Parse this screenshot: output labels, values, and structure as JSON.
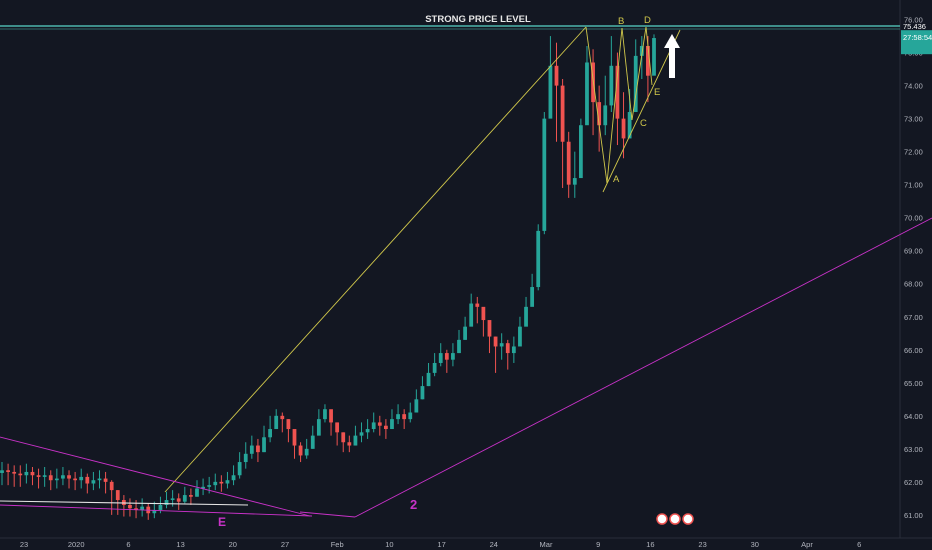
{
  "chart_data": {
    "type": "candlestick",
    "title": "",
    "xlabel": "",
    "ylabel": "",
    "ylim": [
      60.3,
      76.35
    ],
    "x_tick_labels": [
      "23",
      "2020",
      "6",
      "13",
      "20",
      "27",
      "Feb",
      "10",
      "17",
      "24",
      "Mar",
      "9",
      "16",
      "23",
      "30",
      "Apr",
      "6"
    ],
    "y_tick_labels": [
      "61.00",
      "62.00",
      "63.00",
      "64.00",
      "65.00",
      "66.00",
      "67.00",
      "68.00",
      "69.00",
      "70.00",
      "71.00",
      "72.00",
      "73.00",
      "74.00",
      "75.00",
      "76.00"
    ],
    "price_badge": {
      "value": "75.436",
      "countdown": "27:58:54",
      "level": 75.436
    },
    "grid": false,
    "colors": {
      "up": "#26a69a",
      "down": "#ef5350",
      "background": "#131722",
      "level_line": "#4db6ac",
      "channel": "#d1c84b",
      "trend": "#c832c8"
    },
    "series": [
      {
        "name": "",
        "values": [
          62.35,
          62.3,
          62.25,
          62.2,
          62.3,
          62.2,
          62.15,
          62.2,
          62.05,
          62.1,
          62.2,
          62.1,
          62.05,
          62.15,
          61.95,
          62.05,
          62.1,
          62.0,
          61.75,
          61.45,
          61.3,
          61.2,
          61.15,
          61.25,
          61.05,
          61.15,
          61.3,
          61.45,
          61.5,
          61.4,
          61.6,
          61.55,
          61.8,
          61.85,
          61.9,
          62.0,
          61.95,
          62.05,
          62.2,
          62.6,
          62.85,
          63.1,
          62.9,
          63.35,
          63.6,
          64.0,
          63.9,
          63.6,
          63.1,
          62.8,
          63.0,
          63.4,
          63.9,
          64.2,
          63.8,
          63.5,
          63.2,
          63.1,
          63.4,
          63.5,
          63.6,
          63.8,
          63.7,
          63.6,
          63.9,
          64.05,
          63.9,
          64.1,
          64.5,
          64.9,
          65.3,
          65.6,
          65.9,
          65.7,
          65.9,
          66.3,
          66.7,
          67.4,
          67.3,
          66.9,
          66.4,
          66.1,
          66.2,
          65.9,
          66.1,
          66.7,
          67.3,
          67.9,
          69.6,
          73.0,
          74.6,
          74.0,
          72.3,
          71.0,
          71.2,
          72.8,
          74.7,
          73.5,
          72.8,
          73.4,
          74.6,
          73.0,
          72.4,
          73.2,
          74.9,
          75.2,
          74.3,
          75.44
        ],
        "lows": [
          61.9,
          61.9,
          61.85,
          61.85,
          61.95,
          61.9,
          61.8,
          61.85,
          61.75,
          61.8,
          61.9,
          61.8,
          61.75,
          61.8,
          61.65,
          61.75,
          61.8,
          61.65,
          61.0,
          61.0,
          60.95,
          60.95,
          60.9,
          60.95,
          60.85,
          60.9,
          61.05,
          61.2,
          61.25,
          61.15,
          61.35,
          61.3,
          61.55,
          61.6,
          61.65,
          61.75,
          61.7,
          61.8,
          61.9,
          62.1,
          62.4,
          62.7,
          62.6,
          62.9,
          63.2,
          63.6,
          63.5,
          63.2,
          62.7,
          62.6,
          62.7,
          63.0,
          63.5,
          63.8,
          63.4,
          63.1,
          62.9,
          62.9,
          63.1,
          63.2,
          63.3,
          63.5,
          63.4,
          63.3,
          63.6,
          63.75,
          63.6,
          63.8,
          64.1,
          64.5,
          64.9,
          65.2,
          65.5,
          65.3,
          65.5,
          65.9,
          66.3,
          66.9,
          66.8,
          66.4,
          65.9,
          65.3,
          65.7,
          65.4,
          65.6,
          66.2,
          66.8,
          67.4,
          67.8,
          69.5,
          73.2,
          72.3,
          70.9,
          70.6,
          70.6,
          71.5,
          73.0,
          72.5,
          72.0,
          72.5,
          73.2,
          72.2,
          71.8,
          72.4,
          73.8,
          74.2,
          73.5,
          74.6
        ],
        "highs": [
          62.6,
          62.55,
          62.5,
          62.5,
          62.55,
          62.45,
          62.4,
          62.45,
          62.35,
          62.4,
          62.45,
          62.35,
          62.3,
          62.4,
          62.25,
          62.3,
          62.35,
          62.3,
          62.05,
          61.75,
          61.6,
          61.5,
          61.45,
          61.5,
          61.35,
          61.4,
          61.55,
          61.7,
          61.75,
          61.65,
          61.85,
          61.8,
          62.05,
          62.1,
          62.15,
          62.25,
          62.2,
          62.3,
          62.5,
          62.9,
          63.2,
          63.4,
          63.3,
          63.7,
          64.0,
          64.2,
          64.1,
          63.9,
          63.4,
          63.2,
          63.3,
          63.7,
          64.2,
          64.35,
          64.1,
          63.8,
          63.5,
          63.4,
          63.7,
          63.8,
          63.9,
          64.1,
          64.0,
          63.9,
          64.2,
          64.35,
          64.2,
          64.4,
          64.8,
          65.2,
          65.6,
          65.9,
          66.2,
          66.0,
          66.2,
          66.6,
          67.0,
          67.7,
          67.6,
          67.2,
          66.7,
          66.4,
          66.5,
          66.3,
          66.4,
          67.0,
          67.6,
          68.3,
          69.8,
          73.2,
          75.5,
          75.3,
          74.2,
          72.6,
          72.0,
          73.0,
          75.2,
          75.1,
          74.0,
          74.3,
          75.5,
          75.0,
          73.8,
          73.9,
          75.4,
          75.5,
          75.5,
          75.55
        ]
      }
    ],
    "annotations": {
      "level_label": "STRONG PRICE LEVEL",
      "pattern_points": [
        "A",
        "B",
        "C",
        "D",
        "E"
      ],
      "wave_label_left": "E",
      "wave_label_mid": "2"
    }
  }
}
